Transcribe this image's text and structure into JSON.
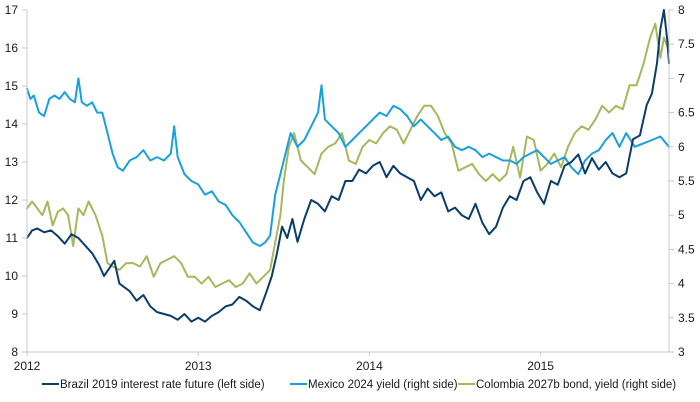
{
  "chart_data": {
    "type": "line",
    "title": "",
    "xlabel": "",
    "x_range": [
      2012.0,
      2015.75
    ],
    "x_ticks": [
      {
        "value": 2012,
        "label": "2012"
      },
      {
        "value": 2013,
        "label": "2013"
      },
      {
        "value": 2014,
        "label": "2014"
      },
      {
        "value": 2015,
        "label": "2015"
      }
    ],
    "left_axis": {
      "ylim": [
        8,
        17
      ],
      "ticks": [
        "8",
        "9",
        "10",
        "11",
        "12",
        "13",
        "14",
        "15",
        "16",
        "17"
      ]
    },
    "right_axis": {
      "ylim": [
        3,
        8
      ],
      "ticks": [
        "3",
        "3.5",
        "4",
        "4.5",
        "5",
        "5.5",
        "6",
        "6.5",
        "7",
        "7.5",
        "8"
      ]
    },
    "grid": false,
    "legend_position": "bottom",
    "series": [
      {
        "name": "Brazil 2019 interest rate future (left side)",
        "axis": "left",
        "color": "#0b3d6b",
        "x": [
          2012.0,
          2012.03,
          2012.06,
          2012.1,
          2012.14,
          2012.18,
          2012.22,
          2012.26,
          2012.3,
          2012.34,
          2012.38,
          2012.42,
          2012.45,
          2012.48,
          2012.51,
          2012.54,
          2012.57,
          2012.6,
          2012.64,
          2012.68,
          2012.72,
          2012.76,
          2012.8,
          2012.84,
          2012.88,
          2012.92,
          2012.96,
          2013.0,
          2013.04,
          2013.08,
          2013.12,
          2013.16,
          2013.2,
          2013.24,
          2013.28,
          2013.32,
          2013.36,
          2013.4,
          2013.43,
          2013.46,
          2013.49,
          2013.52,
          2013.55,
          2013.58,
          2013.62,
          2013.66,
          2013.7,
          2013.74,
          2013.78,
          2013.82,
          2013.86,
          2013.9,
          2013.94,
          2013.98,
          2014.02,
          2014.06,
          2014.1,
          2014.14,
          2014.18,
          2014.22,
          2014.26,
          2014.3,
          2014.34,
          2014.38,
          2014.42,
          2014.46,
          2014.5,
          2014.54,
          2014.58,
          2014.62,
          2014.66,
          2014.7,
          2014.74,
          2014.78,
          2014.82,
          2014.86,
          2014.9,
          2014.94,
          2014.98,
          2015.02,
          2015.06,
          2015.1,
          2015.14,
          2015.18,
          2015.22,
          2015.26,
          2015.3,
          2015.34,
          2015.38,
          2015.42,
          2015.46,
          2015.5,
          2015.54,
          2015.58,
          2015.62,
          2015.65,
          2015.68,
          2015.7,
          2015.72,
          2015.74,
          2015.75
        ],
        "values": [
          11.0,
          11.2,
          11.25,
          11.15,
          11.2,
          11.05,
          10.85,
          11.1,
          11.0,
          10.8,
          10.6,
          10.3,
          10.0,
          10.2,
          10.4,
          9.8,
          9.7,
          9.6,
          9.35,
          9.5,
          9.2,
          9.05,
          9.0,
          8.95,
          8.85,
          9.0,
          8.8,
          8.9,
          8.8,
          8.95,
          9.05,
          9.2,
          9.25,
          9.45,
          9.35,
          9.2,
          9.1,
          9.6,
          10.0,
          10.6,
          11.3,
          11.0,
          11.5,
          10.9,
          11.5,
          12.0,
          11.9,
          11.7,
          12.1,
          12.0,
          12.5,
          12.5,
          12.8,
          12.7,
          12.9,
          13.0,
          12.6,
          12.9,
          12.7,
          12.6,
          12.5,
          12.0,
          12.3,
          12.1,
          12.2,
          11.7,
          11.8,
          11.6,
          11.5,
          11.9,
          11.4,
          11.1,
          11.3,
          11.8,
          12.1,
          12.0,
          12.5,
          12.6,
          12.2,
          11.9,
          12.5,
          12.4,
          12.9,
          13.0,
          13.2,
          12.7,
          13.1,
          12.8,
          13.0,
          12.7,
          12.6,
          12.7,
          13.6,
          13.7,
          14.5,
          14.8,
          15.6,
          16.5,
          17.0,
          16.2,
          15.6
        ]
      },
      {
        "name": "Mexico 2024 yield (right side)",
        "axis": "right",
        "color": "#1aa0dc",
        "x": [
          2012.0,
          2012.02,
          2012.04,
          2012.07,
          2012.1,
          2012.13,
          2012.16,
          2012.19,
          2012.22,
          2012.25,
          2012.28,
          2012.3,
          2012.32,
          2012.35,
          2012.38,
          2012.41,
          2012.44,
          2012.47,
          2012.5,
          2012.53,
          2012.56,
          2012.6,
          2012.64,
          2012.68,
          2012.72,
          2012.76,
          2012.8,
          2012.84,
          2012.86,
          2012.88,
          2012.92,
          2012.96,
          2013.0,
          2013.04,
          2013.08,
          2013.12,
          2013.16,
          2013.2,
          2013.24,
          2013.28,
          2013.32,
          2013.36,
          2013.39,
          2013.42,
          2013.45,
          2013.48,
          2013.51,
          2013.54,
          2013.58,
          2013.62,
          2013.66,
          2013.7,
          2013.72,
          2013.74,
          2013.78,
          2013.82,
          2013.86,
          2013.9,
          2013.94,
          2013.98,
          2014.02,
          2014.06,
          2014.1,
          2014.14,
          2014.18,
          2014.22,
          2014.26,
          2014.3,
          2014.34,
          2014.38,
          2014.42,
          2014.46,
          2014.5,
          2014.54,
          2014.58,
          2014.62,
          2014.66,
          2014.7,
          2014.74,
          2014.78,
          2014.82,
          2014.86,
          2014.9,
          2014.94,
          2014.98,
          2015.02,
          2015.06,
          2015.1,
          2015.14,
          2015.18,
          2015.22,
          2015.26,
          2015.3,
          2015.34,
          2015.38,
          2015.42,
          2015.46,
          2015.5,
          2015.55,
          2015.6,
          2015.65,
          2015.7,
          2015.75
        ],
        "values": [
          6.85,
          6.7,
          6.75,
          6.5,
          6.45,
          6.7,
          6.75,
          6.7,
          6.8,
          6.7,
          6.65,
          7.0,
          6.65,
          6.6,
          6.65,
          6.5,
          6.5,
          6.2,
          5.9,
          5.7,
          5.65,
          5.8,
          5.85,
          5.95,
          5.8,
          5.85,
          5.8,
          5.9,
          6.3,
          5.85,
          5.6,
          5.5,
          5.45,
          5.3,
          5.35,
          5.2,
          5.15,
          5.0,
          4.9,
          4.75,
          4.6,
          4.55,
          4.6,
          4.7,
          5.3,
          5.6,
          5.9,
          6.2,
          6.0,
          6.1,
          6.3,
          6.5,
          6.9,
          6.4,
          6.3,
          6.2,
          6.0,
          6.1,
          6.2,
          6.3,
          6.4,
          6.5,
          6.45,
          6.6,
          6.55,
          6.45,
          6.3,
          6.4,
          6.3,
          6.2,
          6.1,
          6.15,
          6.0,
          5.95,
          6.0,
          5.95,
          5.85,
          5.9,
          5.85,
          5.8,
          5.8,
          5.75,
          5.85,
          5.9,
          5.95,
          5.85,
          5.75,
          5.8,
          5.85,
          5.7,
          5.6,
          5.8,
          5.9,
          5.95,
          6.1,
          6.2,
          6.0,
          6.2,
          6.0,
          6.05,
          6.1,
          6.15,
          6.0
        ]
      },
      {
        "name": "Colombia 2027b bond, yield (right side)",
        "axis": "right",
        "color": "#a5b85c",
        "x": [
          2012.0,
          2012.03,
          2012.06,
          2012.09,
          2012.12,
          2012.15,
          2012.18,
          2012.21,
          2012.24,
          2012.27,
          2012.3,
          2012.33,
          2012.36,
          2012.4,
          2012.44,
          2012.47,
          2012.5,
          2012.54,
          2012.58,
          2012.62,
          2012.66,
          2012.7,
          2012.74,
          2012.78,
          2012.82,
          2012.86,
          2012.9,
          2012.94,
          2012.98,
          2013.02,
          2013.06,
          2013.1,
          2013.14,
          2013.18,
          2013.22,
          2013.26,
          2013.3,
          2013.34,
          2013.38,
          2013.42,
          2013.45,
          2013.48,
          2013.5,
          2013.53,
          2013.56,
          2013.6,
          2013.64,
          2013.68,
          2013.72,
          2013.76,
          2013.8,
          2013.84,
          2013.88,
          2013.92,
          2013.96,
          2014.0,
          2014.04,
          2014.08,
          2014.12,
          2014.16,
          2014.2,
          2014.24,
          2014.28,
          2014.32,
          2014.36,
          2014.4,
          2014.44,
          2014.48,
          2014.52,
          2014.56,
          2014.6,
          2014.64,
          2014.68,
          2014.72,
          2014.76,
          2014.8,
          2014.84,
          2014.88,
          2014.92,
          2014.96,
          2015.0,
          2015.04,
          2015.08,
          2015.12,
          2015.16,
          2015.2,
          2015.24,
          2015.28,
          2015.32,
          2015.36,
          2015.4,
          2015.44,
          2015.48,
          2015.52,
          2015.56,
          2015.6,
          2015.64,
          2015.67,
          2015.7,
          2015.72,
          2015.75
        ],
        "values": [
          5.1,
          5.2,
          5.1,
          5.0,
          5.2,
          4.85,
          5.05,
          5.1,
          5.0,
          4.55,
          5.1,
          5.0,
          5.2,
          5.0,
          4.7,
          4.3,
          4.25,
          4.2,
          4.3,
          4.3,
          4.25,
          4.4,
          4.1,
          4.3,
          4.35,
          4.4,
          4.3,
          4.1,
          4.1,
          4.0,
          4.1,
          3.95,
          4.0,
          4.05,
          3.95,
          4.0,
          4.15,
          4.0,
          4.1,
          4.2,
          4.6,
          5.0,
          5.5,
          6.0,
          6.2,
          5.8,
          5.7,
          5.6,
          5.9,
          6.0,
          6.05,
          6.2,
          5.8,
          5.75,
          6.0,
          6.1,
          6.05,
          6.2,
          6.3,
          6.25,
          6.05,
          6.25,
          6.45,
          6.6,
          6.6,
          6.45,
          6.2,
          6.05,
          5.65,
          5.7,
          5.75,
          5.6,
          5.5,
          5.6,
          5.5,
          5.6,
          6.0,
          5.55,
          6.15,
          6.1,
          5.65,
          5.75,
          5.9,
          5.7,
          6.0,
          6.2,
          6.3,
          6.25,
          6.4,
          6.6,
          6.5,
          6.6,
          6.55,
          6.9,
          6.9,
          7.2,
          7.6,
          7.8,
          7.3,
          7.6,
          7.4
        ]
      }
    ]
  }
}
